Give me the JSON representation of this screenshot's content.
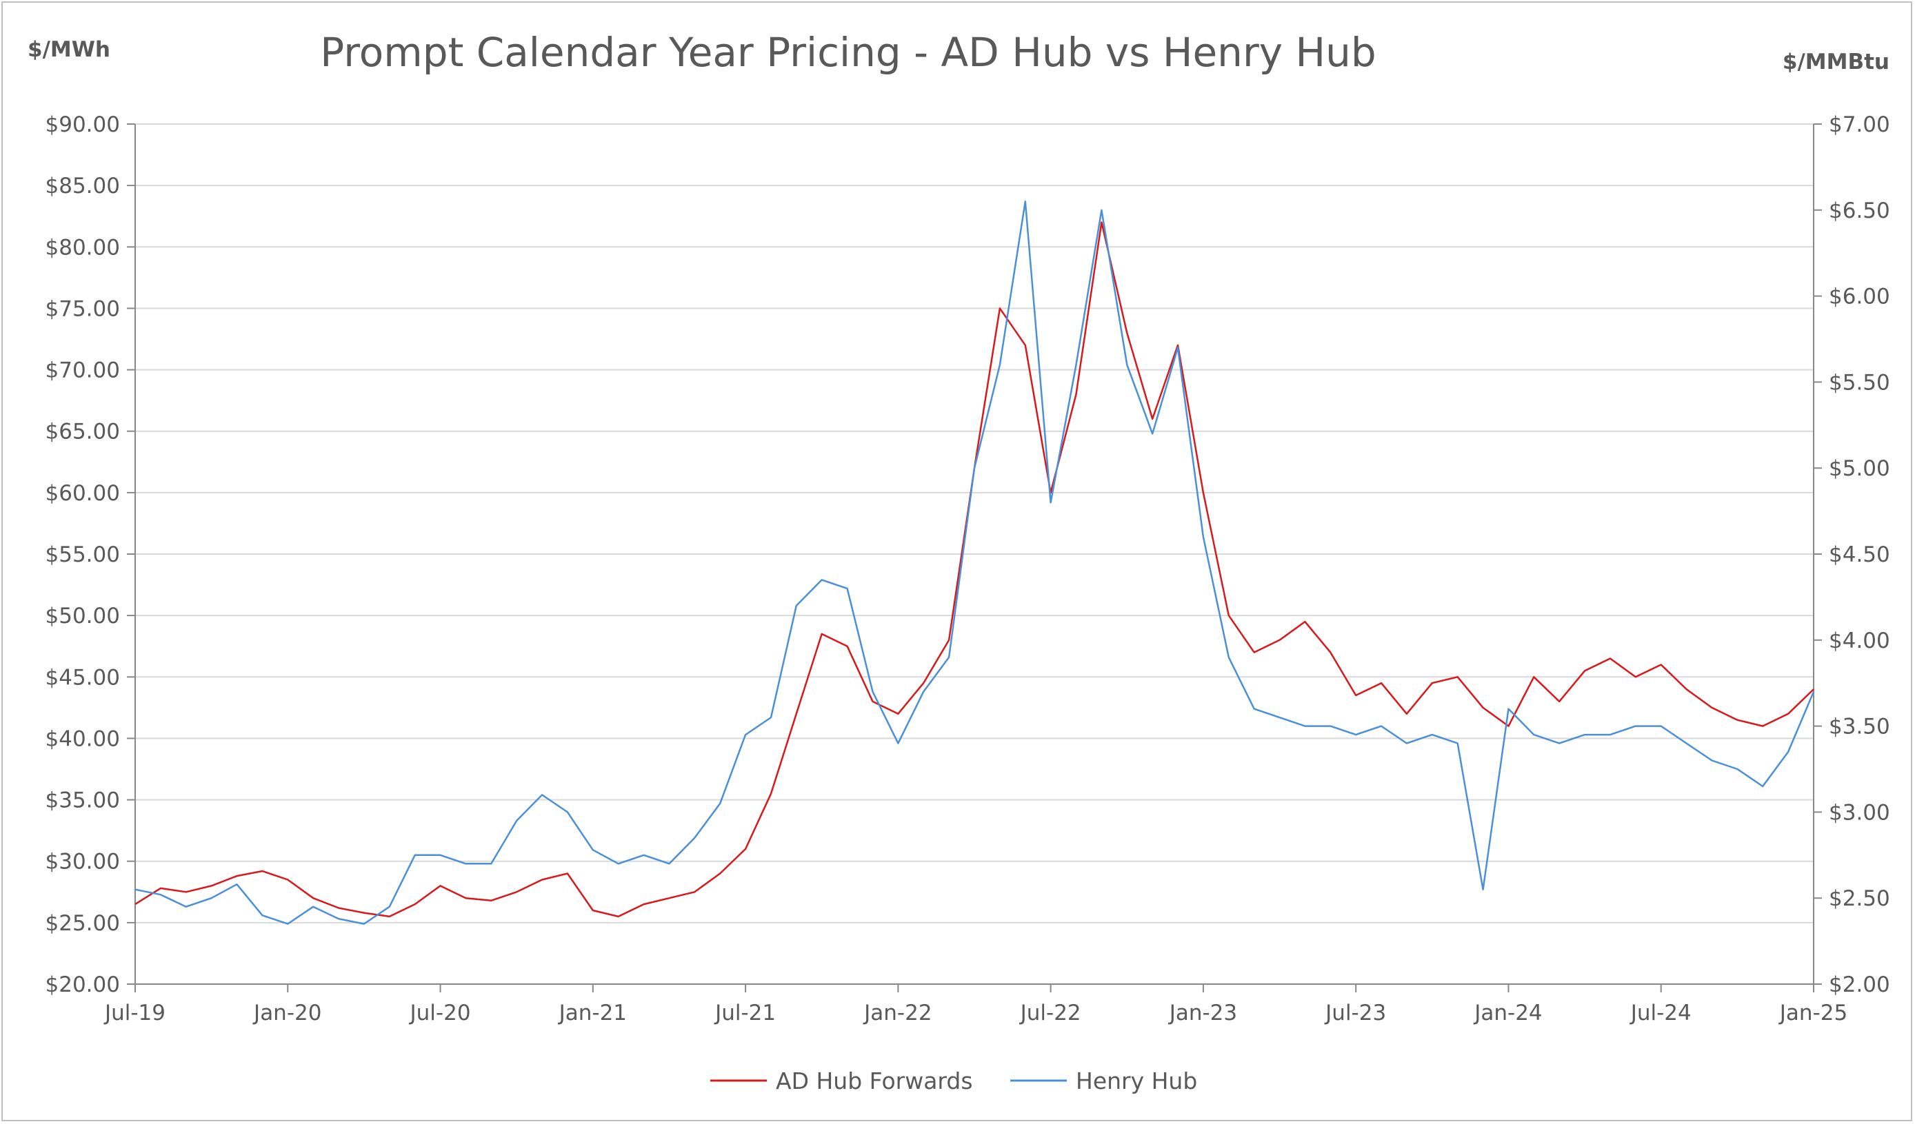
{
  "chart_data": {
    "type": "line",
    "title": "Prompt Calendar Year Pricing - AD Hub vs Henry Hub",
    "ylabel_left": "$/MWh",
    "ylabel_right": "$/MMBtu",
    "x_ticks": [
      "Jul-19",
      "Jan-20",
      "Jul-20",
      "Jan-21",
      "Jul-21",
      "Jan-22",
      "Jul-22",
      "Jan-23",
      "Jul-23",
      "Jan-24",
      "Jul-24",
      "Jan-25"
    ],
    "y_left_ticks": [
      "$20.00",
      "$25.00",
      "$30.00",
      "$35.00",
      "$40.00",
      "$45.00",
      "$50.00",
      "$55.00",
      "$60.00",
      "$65.00",
      "$70.00",
      "$75.00",
      "$80.00",
      "$85.00",
      "$90.00"
    ],
    "y_right_ticks": [
      "$2.00",
      "$2.50",
      "$3.00",
      "$3.50",
      "$4.00",
      "$4.50",
      "$5.00",
      "$5.50",
      "$6.00",
      "$6.50",
      "$7.00"
    ],
    "ylim_left": [
      20,
      90
    ],
    "ylim_right": [
      2,
      7
    ],
    "xlim": [
      "2019-07",
      "2025-01"
    ],
    "grid": "horizontal",
    "legend_position": "bottom",
    "series": [
      {
        "name": "AD Hub Forwards",
        "axis": "left",
        "color": "#d7191c",
        "x": [
          "2019-07",
          "2019-08",
          "2019-09",
          "2019-10",
          "2019-11",
          "2019-12",
          "2020-01",
          "2020-02",
          "2020-03",
          "2020-04",
          "2020-05",
          "2020-06",
          "2020-07",
          "2020-08",
          "2020-09",
          "2020-10",
          "2020-11",
          "2020-12",
          "2021-01",
          "2021-02",
          "2021-03",
          "2021-04",
          "2021-05",
          "2021-06",
          "2021-07",
          "2021-08",
          "2021-09",
          "2021-10",
          "2021-11",
          "2021-12",
          "2022-01",
          "2022-02",
          "2022-03",
          "2022-04",
          "2022-05",
          "2022-06",
          "2022-07",
          "2022-08",
          "2022-09",
          "2022-10",
          "2022-11",
          "2022-12",
          "2023-01",
          "2023-02",
          "2023-03",
          "2023-04",
          "2023-05",
          "2023-06",
          "2023-07",
          "2023-08",
          "2023-09",
          "2023-10",
          "2023-11",
          "2023-12",
          "2024-01",
          "2024-02",
          "2024-03",
          "2024-04",
          "2024-05",
          "2024-06",
          "2024-07",
          "2024-08",
          "2024-09",
          "2024-10",
          "2024-11",
          "2024-12",
          "2025-01"
        ],
        "values": [
          26.5,
          27.8,
          27.5,
          28.0,
          28.8,
          29.2,
          28.5,
          27.0,
          26.2,
          25.8,
          25.5,
          26.5,
          28.0,
          27.0,
          26.8,
          27.5,
          28.5,
          29.0,
          26.0,
          25.5,
          26.5,
          27.0,
          27.5,
          29.0,
          31.0,
          35.5,
          42.0,
          48.5,
          47.5,
          43.0,
          42.0,
          44.5,
          48.0,
          62.0,
          75.0,
          72.0,
          60.0,
          68.0,
          82.0,
          73.0,
          66.0,
          72.0,
          60.0,
          50.0,
          47.0,
          48.0,
          49.5,
          47.0,
          43.5,
          44.5,
          42.0,
          44.5,
          45.0,
          42.5,
          41.0,
          45.0,
          43.0,
          45.5,
          46.5,
          45.0,
          46.0,
          44.0,
          42.5,
          41.5,
          41.0,
          42.0,
          44.0
        ]
      },
      {
        "name": "Henry Hub",
        "axis": "right",
        "color": "#4a90d9",
        "x": [
          "2019-07",
          "2019-08",
          "2019-09",
          "2019-10",
          "2019-11",
          "2019-12",
          "2020-01",
          "2020-02",
          "2020-03",
          "2020-04",
          "2020-05",
          "2020-06",
          "2020-07",
          "2020-08",
          "2020-09",
          "2020-10",
          "2020-11",
          "2020-12",
          "2021-01",
          "2021-02",
          "2021-03",
          "2021-04",
          "2021-05",
          "2021-06",
          "2021-07",
          "2021-08",
          "2021-09",
          "2021-10",
          "2021-11",
          "2021-12",
          "2022-01",
          "2022-02",
          "2022-03",
          "2022-04",
          "2022-05",
          "2022-06",
          "2022-07",
          "2022-08",
          "2022-09",
          "2022-10",
          "2022-11",
          "2022-12",
          "2023-01",
          "2023-02",
          "2023-03",
          "2023-04",
          "2023-05",
          "2023-06",
          "2023-07",
          "2023-08",
          "2023-09",
          "2023-10",
          "2023-11",
          "2023-12",
          "2024-01",
          "2024-02",
          "2024-03",
          "2024-04",
          "2024-05",
          "2024-06",
          "2024-07",
          "2024-08",
          "2024-09",
          "2024-10",
          "2024-11",
          "2024-12",
          "2025-01"
        ],
        "values": [
          2.55,
          2.52,
          2.45,
          2.5,
          2.58,
          2.4,
          2.35,
          2.45,
          2.38,
          2.35,
          2.45,
          2.75,
          2.75,
          2.7,
          2.7,
          2.95,
          3.1,
          3.0,
          2.78,
          2.7,
          2.75,
          2.7,
          2.85,
          3.05,
          3.45,
          3.55,
          4.2,
          4.35,
          4.3,
          3.7,
          3.4,
          3.7,
          3.9,
          5.0,
          5.6,
          6.55,
          4.8,
          5.6,
          6.5,
          5.6,
          5.2,
          5.7,
          4.6,
          3.9,
          3.6,
          3.55,
          3.5,
          3.5,
          3.45,
          3.5,
          3.4,
          3.45,
          3.4,
          2.55,
          3.6,
          3.45,
          3.4,
          3.45,
          3.45,
          3.5,
          3.5,
          3.4,
          3.3,
          3.25,
          3.15,
          3.35,
          3.7
        ]
      }
    ]
  }
}
